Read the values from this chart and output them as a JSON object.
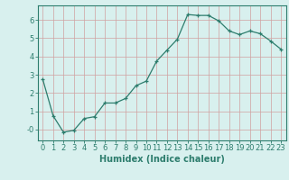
{
  "x": [
    0,
    1,
    2,
    3,
    4,
    5,
    6,
    7,
    8,
    9,
    10,
    11,
    12,
    13,
    14,
    15,
    16,
    17,
    18,
    19,
    20,
    21,
    22,
    23
  ],
  "y": [
    2.75,
    0.75,
    -0.15,
    -0.05,
    0.6,
    0.7,
    1.45,
    1.45,
    1.7,
    2.4,
    2.65,
    3.75,
    4.35,
    4.95,
    6.3,
    6.25,
    6.25,
    5.95,
    5.4,
    5.2,
    5.4,
    5.25,
    4.85,
    4.4
  ],
  "line_color": "#2d7d6d",
  "marker": "+",
  "marker_size": 3.0,
  "bg_color": "#d8f0ee",
  "grid_color": "#d0a0a0",
  "xlabel": "Humidex (Indice chaleur)",
  "xlabel_fontsize": 7,
  "tick_fontsize": 6,
  "ylim": [
    -0.6,
    6.8
  ],
  "xlim": [
    -0.5,
    23.5
  ],
  "yticks": [
    0,
    1,
    2,
    3,
    4,
    5,
    6
  ],
  "ytick_labels": [
    "-0",
    "1",
    "2",
    "3",
    "4",
    "5",
    "6"
  ],
  "xticks": [
    0,
    1,
    2,
    3,
    4,
    5,
    6,
    7,
    8,
    9,
    10,
    11,
    12,
    13,
    14,
    15,
    16,
    17,
    18,
    19,
    20,
    21,
    22,
    23
  ]
}
